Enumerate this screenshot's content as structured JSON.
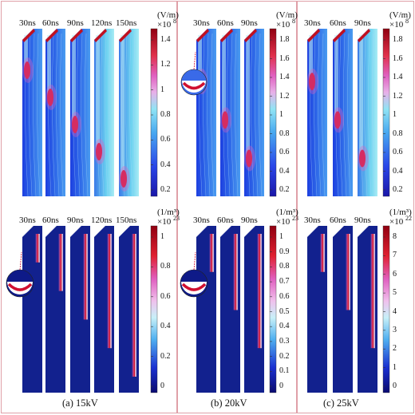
{
  "panels": [
    {
      "caption": "(a) 15kV",
      "times": [
        "30ns",
        "60ns",
        "90ns",
        "120ns",
        "150ns"
      ],
      "efield_colorbar": {
        "unit": "(V/m)",
        "multiplier": "×10",
        "exponent": "8",
        "ticks": [
          "1.4",
          "1.2",
          "1",
          "0.8",
          "0.6",
          "0.4",
          "0.2"
        ]
      },
      "density_colorbar": {
        "unit": "(1/m³)",
        "multiplier": "×10",
        "exponent": "23",
        "ticks": [
          "1",
          "0.8",
          "0.6",
          "0.4",
          "0.2",
          "0"
        ]
      }
    },
    {
      "caption": "(b) 20kV",
      "times": [
        "30ns",
        "60ns",
        "90ns"
      ],
      "efield_colorbar": {
        "unit": "(V/m)",
        "multiplier": "×10",
        "exponent": "8",
        "ticks": [
          "1.8",
          "1.6",
          "1.4",
          "1.2",
          "1",
          "0.8",
          "0.6",
          "0.4",
          "0.2"
        ]
      },
      "density_colorbar": {
        "unit": "(1/m³)",
        "multiplier": "×10",
        "exponent": "23",
        "ticks": [
          "1",
          "0.9",
          "0.8",
          "0.7",
          "0.6",
          "0.5",
          "0.4",
          "0.3",
          "0.2",
          "0.1",
          "0"
        ]
      }
    },
    {
      "caption": "(c) 25kV",
      "times": [
        "30ns",
        "60ns",
        "90ns"
      ],
      "efield_colorbar": {
        "unit": "(V/m)",
        "multiplier": "×10",
        "exponent": "8",
        "ticks": [
          "1.8",
          "1.6",
          "1.4",
          "1.2",
          "1",
          "0.8",
          "0.6",
          "0.4",
          "0.2"
        ]
      },
      "density_colorbar": {
        "unit": "(1/m³)",
        "multiplier": "×10",
        "exponent": "22",
        "ticks": [
          "8",
          "7",
          "6",
          "5",
          "4",
          "3",
          "2",
          "1",
          "0"
        ]
      }
    }
  ],
  "colors": {
    "field_dark": "#1b2fd8",
    "field_mid": "#3f8be0",
    "field_light": "#8ad8f0",
    "hot": "#d0102a",
    "pink": "#e060c0",
    "density_bg": "#10208a",
    "frame": "#e0a0a8"
  }
}
